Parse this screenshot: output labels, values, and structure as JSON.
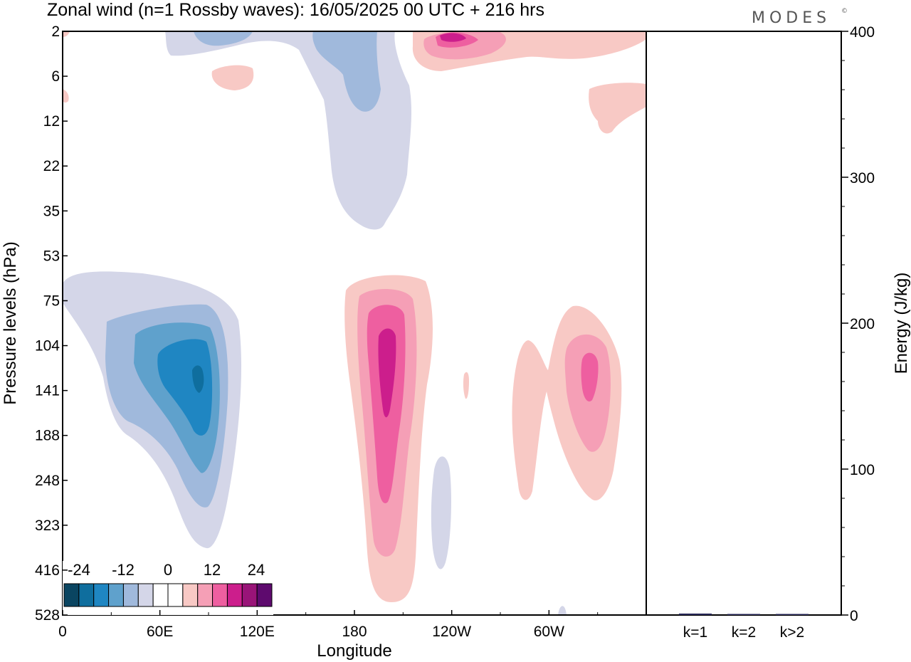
{
  "header": {
    "title": "Zonal wind (n=1 Rossby waves):  16/05/2025  00 UTC  + 216 hrs",
    "logo": "MODES",
    "logo_mark": "©"
  },
  "chart_data": [
    {
      "type": "heatmap",
      "title": "Zonal wind (n=1 Rossby waves):  16/05/2025  00 UTC  + 216 hrs",
      "xlabel": "Longitude",
      "ylabel": "Pressure levels (hPa)",
      "x_ticks": [
        "0",
        "60E",
        "120E",
        "180",
        "120W",
        "60W"
      ],
      "x_tick_degrees": [
        0,
        60,
        120,
        180,
        240,
        300
      ],
      "xlim": [
        0,
        360
      ],
      "y_ticks": [
        "2",
        "6",
        "12",
        "22",
        "35",
        "53",
        "75",
        "104",
        "141",
        "188",
        "248",
        "323",
        "416",
        "528"
      ],
      "y_scale": "model levels (top 2 hPa, bottom 528 hPa)",
      "colorbar": {
        "tick_labels": [
          "-24",
          "-12",
          "0",
          "12",
          "24"
        ],
        "colors": [
          "#0a4561",
          "#0f6e9e",
          "#1f86c2",
          "#5fa1cc",
          "#a0b9dc",
          "#d4d6e8",
          "#ffffff",
          "#ffffff",
          "#f8c9c5",
          "#f59fb6",
          "#ee5fa0",
          "#cc1e8c",
          "#991478",
          "#5e0a6e"
        ]
      },
      "features": [
        {
          "sign": "negative",
          "center_lon": 84,
          "center_level": "141",
          "peak": -24
        },
        {
          "sign": "positive",
          "center_lon": 198,
          "center_level": "141",
          "peak": 18
        },
        {
          "sign": "positive",
          "center_lon": 325,
          "center_level": "141",
          "peak": 15
        },
        {
          "sign": "negative",
          "center_lon": 190,
          "center_level": "6",
          "peak": -12
        },
        {
          "sign": "positive",
          "center_lon": 240,
          "center_level": "2",
          "peak": 15
        }
      ]
    },
    {
      "type": "bar",
      "ylabel": "Energy (J/kg)",
      "categories": [
        "k=1",
        "k=2",
        "k>2"
      ],
      "values": [
        1,
        0,
        0.5
      ],
      "ylim": [
        0,
        400
      ],
      "y_ticks": [
        "0",
        "100",
        "200",
        "300",
        "400"
      ],
      "bar_color": "#2a2a5a"
    }
  ]
}
